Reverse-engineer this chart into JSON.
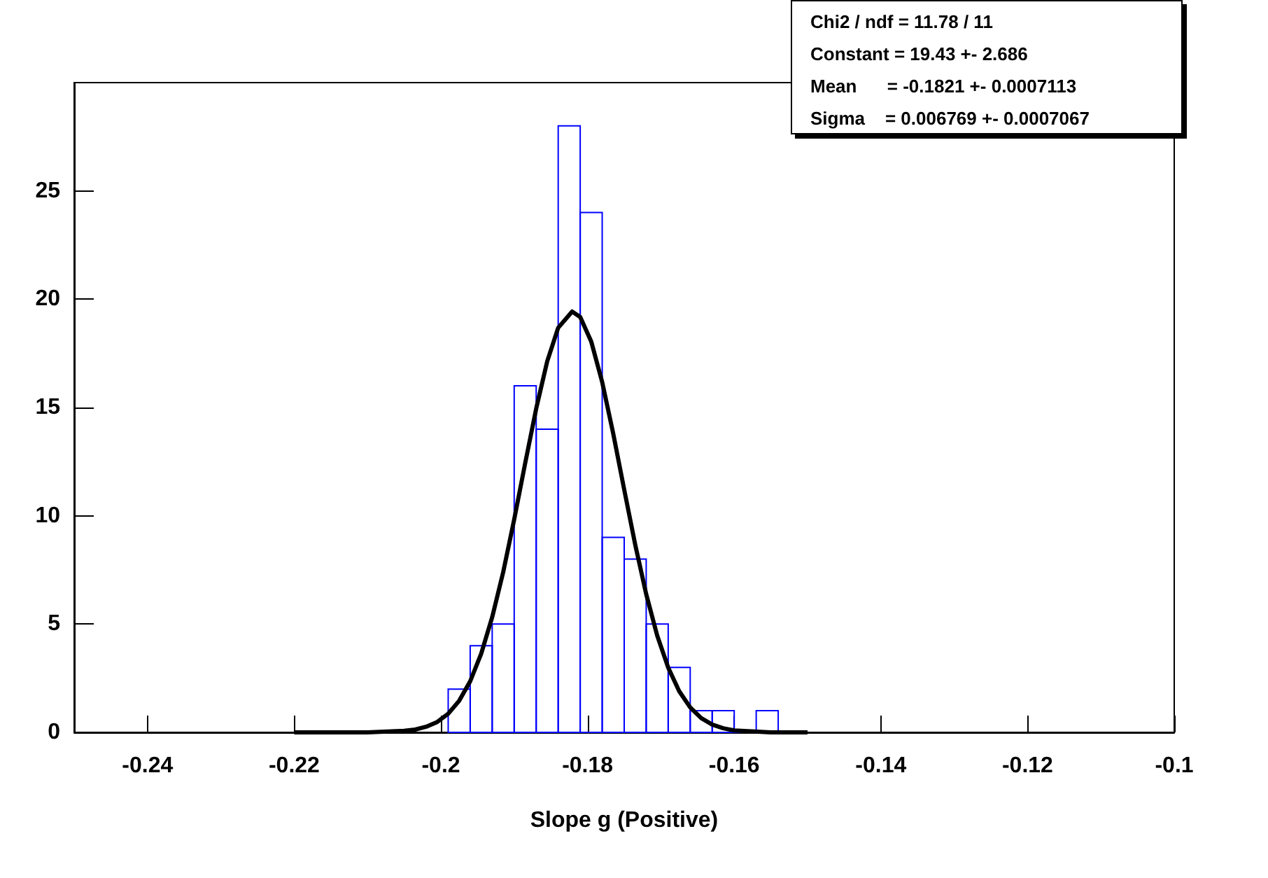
{
  "chart_data": {
    "type": "histogram",
    "xlabel": "Slope g (Positive)",
    "bins": [
      -0.199,
      -0.196,
      -0.193,
      -0.19,
      -0.187,
      -0.184,
      -0.181,
      -0.178,
      -0.175,
      -0.172,
      -0.169,
      -0.166,
      -0.163,
      -0.16,
      -0.157,
      -0.154
    ],
    "values": [
      2,
      4,
      5,
      16,
      14,
      28,
      24,
      9,
      8,
      5,
      3,
      1,
      1,
      0,
      1
    ],
    "color": "#0000ff",
    "series": [
      {
        "type": "line",
        "color": "#000000",
        "x": [
          -0.22,
          -0.21,
          -0.205,
          -0.2035,
          -0.202,
          -0.2005,
          -0.199,
          -0.1975,
          -0.196,
          -0.1945,
          -0.193,
          -0.1915,
          -0.19,
          -0.1885,
          -0.187,
          -0.1855,
          -0.184,
          -0.1821,
          -0.181,
          -0.1795,
          -0.178,
          -0.1765,
          -0.175,
          -0.1735,
          -0.172,
          -0.1705,
          -0.169,
          -0.1675,
          -0.166,
          -0.1645,
          -0.163,
          -0.1615,
          -0.16,
          -0.155,
          -0.15
        ],
        "values": [
          0,
          0,
          0.07,
          0.13,
          0.26,
          0.48,
          0.86,
          1.46,
          2.36,
          3.63,
          5.32,
          7.4,
          9.83,
          12.43,
          14.95,
          17.13,
          18.68,
          19.43,
          19.18,
          18.05,
          16.17,
          13.8,
          11.21,
          8.67,
          6.38,
          4.47,
          2.99,
          1.9,
          1.15,
          0.66,
          0.36,
          0.19,
          0.09,
          0,
          0
        ]
      }
    ],
    "xlim": [
      -0.25,
      -0.1
    ],
    "xticks": [
      -0.24,
      -0.22,
      -0.2,
      -0.18,
      -0.16,
      -0.14,
      -0.12,
      -0.1
    ],
    "ylim": [
      0,
      30
    ],
    "yticks": [
      0,
      5,
      10,
      15,
      20,
      25
    ],
    "grid": false,
    "marker": "none",
    "line_style": "solid",
    "annotations": [
      "Chi2 / ndf = 11.78 / 11",
      "Constant = 19.43 +- 2.686",
      "Mean      = -0.1821 +- 0.0007113",
      "Sigma    = 0.006769 +- 0.0007067"
    ]
  }
}
